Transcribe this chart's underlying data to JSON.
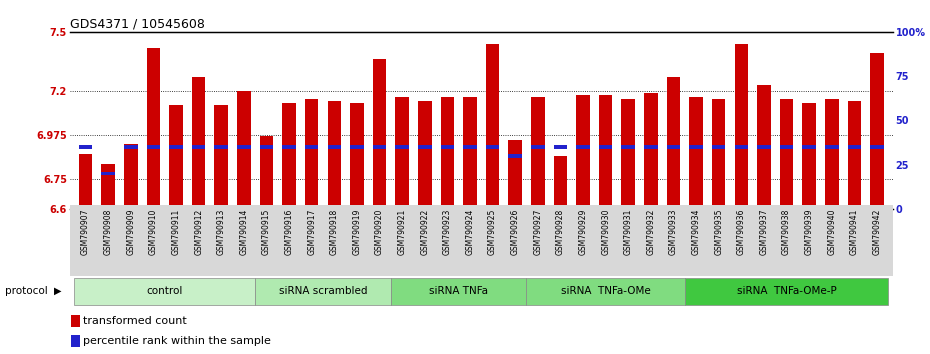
{
  "title": "GDS4371 / 10545608",
  "samples": [
    "GSM790907",
    "GSM790908",
    "GSM790909",
    "GSM790910",
    "GSM790911",
    "GSM790912",
    "GSM790913",
    "GSM790914",
    "GSM790915",
    "GSM790916",
    "GSM790917",
    "GSM790918",
    "GSM790919",
    "GSM790920",
    "GSM790921",
    "GSM790922",
    "GSM790923",
    "GSM790924",
    "GSM790925",
    "GSM790926",
    "GSM790927",
    "GSM790928",
    "GSM790929",
    "GSM790930",
    "GSM790931",
    "GSM790932",
    "GSM790933",
    "GSM790934",
    "GSM790935",
    "GSM790936",
    "GSM790937",
    "GSM790938",
    "GSM790939",
    "GSM790940",
    "GSM790941",
    "GSM790942"
  ],
  "red_values": [
    6.88,
    6.83,
    6.93,
    7.42,
    7.13,
    7.27,
    7.13,
    7.2,
    6.97,
    7.14,
    7.16,
    7.15,
    7.14,
    7.36,
    7.17,
    7.15,
    7.17,
    7.17,
    7.44,
    6.95,
    7.17,
    6.87,
    7.18,
    7.18,
    7.16,
    7.19,
    7.27,
    7.17,
    7.16,
    7.44,
    7.23,
    7.16,
    7.14,
    7.16,
    7.15,
    7.39
  ],
  "blue_percentiles": [
    35,
    20,
    35,
    35,
    35,
    35,
    35,
    35,
    35,
    35,
    35,
    35,
    35,
    35,
    35,
    35,
    35,
    35,
    35,
    30,
    35,
    35,
    35,
    35,
    35,
    35,
    35,
    35,
    35,
    35,
    35,
    35,
    35,
    35,
    35,
    35
  ],
  "groups": [
    {
      "label": "control",
      "start": 0,
      "end": 8,
      "color": "#c8f0c8"
    },
    {
      "label": "siRNA scrambled",
      "start": 8,
      "end": 14,
      "color": "#b0eab0"
    },
    {
      "label": "siRNA TNFa",
      "start": 14,
      "end": 20,
      "color": "#80dc80"
    },
    {
      "label": "siRNA  TNFa-OMe",
      "start": 20,
      "end": 27,
      "color": "#80dc80"
    },
    {
      "label": "siRNA  TNFa-OMe-P",
      "start": 27,
      "end": 36,
      "color": "#40c840"
    }
  ],
  "ylim": [
    6.6,
    7.5
  ],
  "yticks": [
    6.6,
    6.75,
    6.975,
    7.2,
    7.5
  ],
  "ytick_labels": [
    "6.6",
    "6.75",
    "6.975",
    "7.2",
    "7.5"
  ],
  "grid_yticks": [
    6.75,
    6.975,
    7.2
  ],
  "right_yticks": [
    0,
    25,
    50,
    75,
    100
  ],
  "right_ytick_labels": [
    "0",
    "25",
    "50",
    "75",
    "100%"
  ],
  "bar_color": "#cc0000",
  "blue_color": "#2222cc",
  "tick_label_color_left": "#cc0000",
  "tick_label_color_right": "#2222cc"
}
